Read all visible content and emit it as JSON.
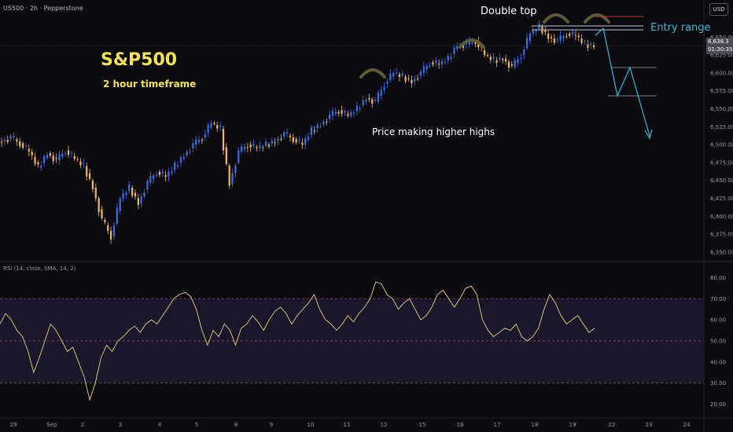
{
  "header": {
    "symbol": "US500 · 2h · Pepperstone",
    "currency": "USD"
  },
  "price_tags": {
    "last": "6,638.3",
    "countdown": "01:30:35"
  },
  "rsi_label": "RSI (14, close, SMA, 14, 2)",
  "annotations": {
    "title": "S&P500",
    "subtitle": "2 hour timeframe",
    "higher_highs": "Price making higher highs",
    "double_top": "Double top",
    "entry_range": "Entry range"
  },
  "colors": {
    "bull": "#3d6ee8",
    "bear": "#f0b764",
    "rsi": "#e6d27a",
    "title": "#f3e35a",
    "entry": "#38b6d8",
    "arc": "#5d5a35"
  },
  "chart_data": [
    {
      "type": "candlestick",
      "title": "US500 · 2h · Pepperstone",
      "x_ticks": [
        "29",
        "Sep",
        "2",
        "3",
        "4",
        "5",
        "8",
        "9",
        "10",
        "11",
        "12",
        "15",
        "16",
        "17",
        "18",
        "19",
        "22",
        "23",
        "24"
      ],
      "y_ticks": [
        6350,
        6375,
        6400,
        6425,
        6450,
        6475,
        6500,
        6525,
        6550,
        6575,
        6600,
        6625,
        6650
      ],
      "ylim": [
        6340,
        6680
      ],
      "last_price": 6638.3,
      "series": [
        {
          "values": [
            6505,
            6510,
            6502,
            6490,
            6468,
            6488,
            6478,
            6492,
            6480,
            6470,
            6440,
            6395,
            6372,
            6425,
            6440,
            6418,
            6447,
            6462,
            6455,
            6470,
            6485,
            6500,
            6510,
            6530,
            6522,
            6445,
            6490,
            6500,
            6495,
            6500,
            6505,
            6515,
            6508,
            6500,
            6520,
            6528,
            6540,
            6548,
            6540,
            6550,
            6565,
            6560,
            6585,
            6600,
            6595,
            6588,
            6600,
            6615,
            6612,
            6620,
            6640,
            6640,
            6645,
            6625,
            6618,
            6620,
            6608,
            6625,
            6655,
            6665,
            6650,
            6645,
            6655,
            6652,
            6640,
            6638
          ]
        }
      ]
    },
    {
      "type": "line",
      "title": "RSI (14, close, SMA, 14, 2)",
      "y_ticks": [
        20,
        30,
        40,
        50,
        60,
        70,
        80
      ],
      "ylim": [
        15,
        85
      ],
      "reference_lines": [
        30,
        50,
        70
      ],
      "series": [
        {
          "values": [
            58,
            63,
            60,
            55,
            52,
            45,
            35,
            42,
            50,
            58,
            55,
            50,
            45,
            47,
            40,
            33,
            22,
            30,
            42,
            48,
            45,
            50,
            52,
            55,
            57,
            54,
            58,
            60,
            58,
            62,
            66,
            70,
            72,
            73,
            71,
            65,
            55,
            48,
            55,
            52,
            58,
            55,
            48,
            56,
            58,
            62,
            59,
            55,
            60,
            64,
            66,
            63,
            58,
            62,
            65,
            68,
            72,
            65,
            60,
            58,
            55,
            58,
            62,
            59,
            63,
            66,
            70,
            78,
            77,
            72,
            70,
            65,
            68,
            70,
            65,
            60,
            62,
            66,
            72,
            74,
            70,
            66,
            70,
            75,
            76,
            72,
            60,
            55,
            52,
            54,
            56,
            55,
            58,
            52,
            50,
            52,
            56,
            65,
            72,
            68,
            62,
            58,
            60,
            62,
            58,
            54,
            56
          ]
        }
      ]
    }
  ]
}
